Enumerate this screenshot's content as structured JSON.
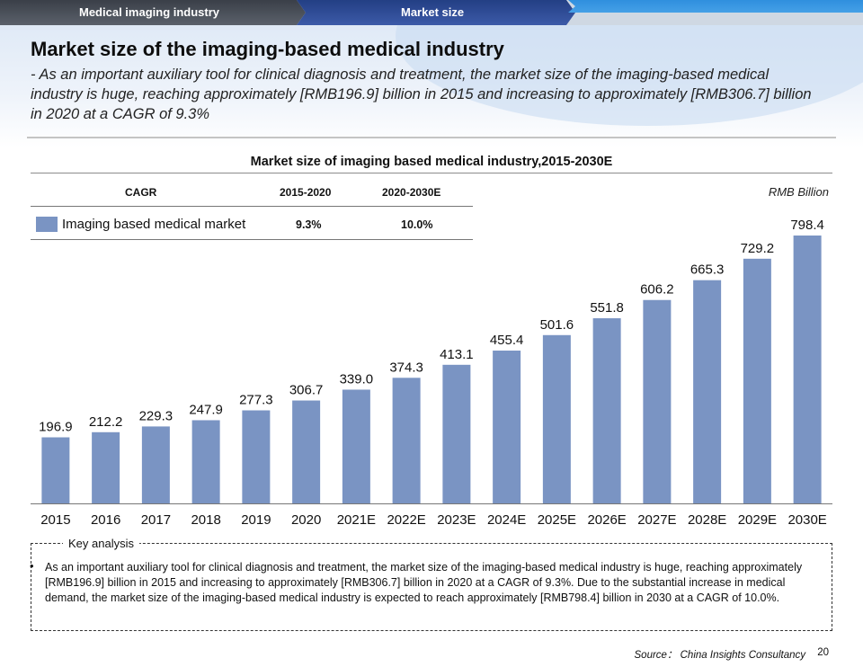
{
  "header": {
    "tab_section": "Medical imaging industry",
    "tab_topic": "Market size"
  },
  "page": {
    "title": "Market size of the imaging-based medical industry",
    "subtitle": "- As an important auxiliary tool for clinical diagnosis and treatment, the market size of the imaging-based medical industry is huge, reaching approximately [RMB196.9] billion in 2015 and increasing to approximately [RMB306.7] billion in 2020 at a CAGR of 9.3%"
  },
  "cagr_table": {
    "head_cagr": "CAGR",
    "head_p1": "2015-2020",
    "head_p2": "2020-2030E",
    "row_label": "Imaging based medical market",
    "row_p1": "9.3%",
    "row_p2": "10.0%"
  },
  "colors": {
    "bar": "#7a94c3"
  },
  "chart_data": {
    "type": "bar",
    "title": "Market size of imaging based medical industry,2015-2030E",
    "unit": "RMB Billion",
    "categories": [
      "2015",
      "2016",
      "2017",
      "2018",
      "2019",
      "2020",
      "2021E",
      "2022E",
      "2023E",
      "2024E",
      "2025E",
      "2026E",
      "2027E",
      "2028E",
      "2029E",
      "2030E"
    ],
    "values": [
      196.9,
      212.2,
      229.3,
      247.9,
      277.3,
      306.7,
      339.0,
      374.3,
      413.1,
      455.4,
      501.6,
      551.8,
      606.2,
      665.3,
      729.2,
      798.4
    ],
    "value_labels": [
      "196.9",
      "212.2",
      "229.3",
      "247.9",
      "277.3",
      "306.7",
      "339.0",
      "374.3",
      "413.1",
      "455.4",
      "501.6",
      "551.8",
      "606.2",
      "665.3",
      "729.2",
      "798.4"
    ],
    "series_name": "Imaging based medical market",
    "ylim": [
      0,
      798.4
    ]
  },
  "analysis": {
    "label": "Key analysis",
    "bullet": "•",
    "text": "As an important auxiliary tool for clinical diagnosis and treatment, the market size of the imaging-based medical industry is huge, reaching approximately [RMB196.9] billion in 2015 and increasing to approximately [RMB306.7] billion in 2020 at a CAGR of 9.3%. Due to the substantial increase in medical demand, the market size of the imaging-based medical industry is expected to reach approximately [RMB798.4] billion in 2030 at a CAGR of 10.0%."
  },
  "footer": {
    "source": "Source： China Insights Consultancy",
    "page_number": "20"
  }
}
